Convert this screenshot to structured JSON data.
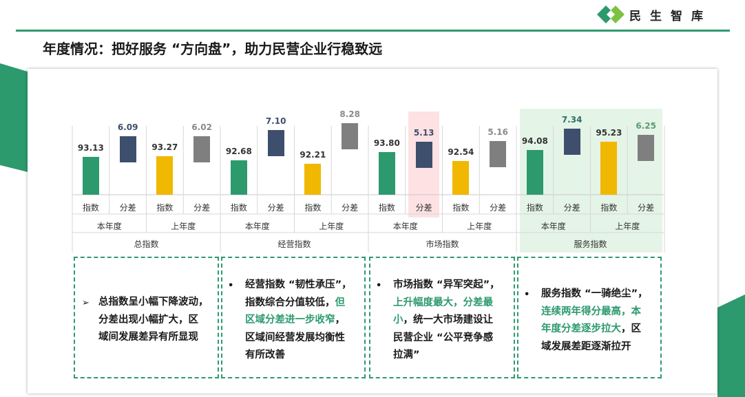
{
  "header": {
    "logo_text": "民生智库",
    "title": "年度情况：把好服务 “方向盘”，助力民营企业行稳致远"
  },
  "colors": {
    "brand_green": "#2d9a6e",
    "index_this_year": "#2d9a6e",
    "gap_this_year": "#3e4e6d",
    "index_last_year": "#f0b800",
    "gap_last_year": "#7f7f7f"
  },
  "chart_data": {
    "type": "bar",
    "title": "",
    "series_labels": {
      "index": "指数",
      "gap": "分差"
    },
    "year_labels": {
      "this_year": "本年度",
      "last_year": "上年度"
    },
    "groups": [
      {
        "category": "总指数",
        "this_year": {
          "index": "93.13",
          "gap": "6.09"
        },
        "last_year": {
          "index": "93.27",
          "gap": "6.02"
        }
      },
      {
        "category": "经营指数",
        "this_year": {
          "index": "92.68",
          "gap": "7.10"
        },
        "last_year": {
          "index": "92.21",
          "gap": "8.28"
        }
      },
      {
        "category": "市场指数",
        "this_year": {
          "index": "93.80",
          "gap": "5.13"
        },
        "last_year": {
          "index": "92.54",
          "gap": "5.16"
        }
      },
      {
        "category": "服务指数",
        "this_year": {
          "index": "94.08",
          "gap": "7.34"
        },
        "last_year": {
          "index": "95.23",
          "gap": "6.25"
        }
      }
    ],
    "highlighted": [
      "市场指数 本年度 分差",
      "服务指数"
    ]
  },
  "boxes": [
    {
      "marker": "➢",
      "lines": [
        {
          "parts": [
            {
              "t": "总指数呈小幅下降波动，",
              "h": false
            }
          ]
        },
        {
          "parts": [
            {
              "t": "分差出现小幅扩大，区",
              "h": false
            }
          ]
        },
        {
          "parts": [
            {
              "t": "域间发展差异有所显现",
              "h": false
            }
          ]
        }
      ]
    },
    {
      "marker": "•",
      "lines": [
        {
          "parts": [
            {
              "t": "经营指数 “韧性承压”，",
              "h": false
            }
          ]
        },
        {
          "parts": [
            {
              "t": "指数综合分值较低，",
              "h": false
            },
            {
              "t": "但",
              "h": true
            }
          ]
        },
        {
          "parts": [
            {
              "t": "区域分差进一步收窄",
              "h": true
            },
            {
              "t": "，",
              "h": false
            }
          ]
        },
        {
          "parts": [
            {
              "t": "区域间经营发展均衡性",
              "h": false
            }
          ]
        },
        {
          "parts": [
            {
              "t": "有所改善",
              "h": false
            }
          ]
        }
      ]
    },
    {
      "marker": "•",
      "lines": [
        {
          "parts": [
            {
              "t": "市场指数 “异军突起”，",
              "h": false
            }
          ]
        },
        {
          "parts": [
            {
              "t": "上升幅度最大，分差最",
              "h": true
            }
          ]
        },
        {
          "parts": [
            {
              "t": "小",
              "h": true
            },
            {
              "t": "，统一大市场建设让",
              "h": false
            }
          ]
        },
        {
          "parts": [
            {
              "t": "民营企业 “公平竞争感",
              "h": false
            }
          ]
        },
        {
          "parts": [
            {
              "t": "拉满”",
              "h": false
            }
          ]
        }
      ]
    },
    {
      "marker": "•",
      "lines": [
        {
          "parts": [
            {
              "t": "服务指数 “一骑绝尘”，",
              "h": false
            }
          ]
        },
        {
          "parts": [
            {
              "t": "连续两年得分最高，本",
              "h": true
            }
          ]
        },
        {
          "parts": [
            {
              "t": "年度分差逐步拉大",
              "h": true
            },
            {
              "t": "，区",
              "h": false
            }
          ]
        },
        {
          "parts": [
            {
              "t": "域发展差距逐渐拉开",
              "h": false
            }
          ]
        }
      ]
    }
  ]
}
